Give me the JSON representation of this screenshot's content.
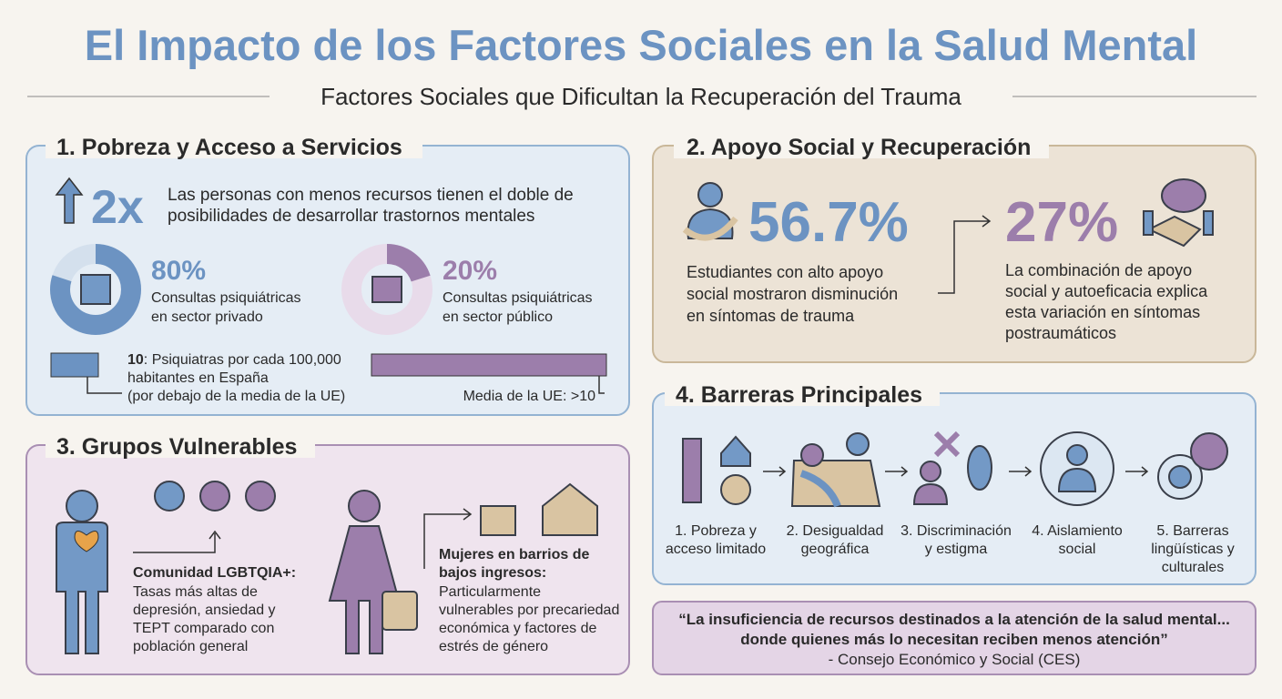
{
  "title": "El Impacto de los Factores Sociales en la Salud Mental",
  "subtitle": "Factores Sociales que Dificultan la Recuperación del Trauma",
  "poverty": {
    "heading": "1. Pobreza y Acceso a Servicios",
    "multiplier": "2x",
    "description": [
      "Las personas con menos recursos tienen el doble de",
      "posibilidades de desarrollar trastornos mentales"
    ],
    "private": {
      "value": 80,
      "label": "80%",
      "text": [
        "Consultas psiquiátricas",
        "en sector privado"
      ]
    },
    "public": {
      "value": 20,
      "label": "20%",
      "text": [
        "Consultas psiquiátricas",
        "en sector público"
      ]
    },
    "psychiatrists": {
      "number": "10",
      "text": [
        ": Psiquiatras por cada 100,000",
        "habitantes en España",
        "(por debajo de la media de la UE)"
      ]
    },
    "eu_average": "Media de la UE: >10"
  },
  "support": {
    "heading": "2. Apoyo Social y Recuperación",
    "stat1": "56.7%",
    "text1": [
      "Estudiantes con alto apoyo",
      "social mostraron disminución",
      "en síntomas de trauma"
    ],
    "stat2": "27%",
    "text2": [
      "La combinación de apoyo",
      "social y autoeficacia explica",
      "esta variación en síntomas",
      "postraumáticos"
    ]
  },
  "vulnerable": {
    "heading": "3. Grupos Vulnerables",
    "lgbt": {
      "title": "Comunidad LGBTQIA+:",
      "text": [
        "Tasas más altas de",
        "depresión, ansiedad y",
        "TEPT comparado con",
        "población general"
      ]
    },
    "women": {
      "title": [
        "Mujeres en barrios de",
        "bajos ingresos:"
      ],
      "text": [
        "Particularmente",
        "vulnerables por precariedad",
        "económica y factores de",
        "estrés de género"
      ]
    }
  },
  "barriers": {
    "heading": "4. Barreras Principales",
    "items": [
      [
        "1. Pobreza y",
        "acceso limitado"
      ],
      [
        "2. Desigualdad",
        "geográfica"
      ],
      [
        "3. Discriminación",
        "y estigma"
      ],
      [
        "4. Aislamiento",
        "social"
      ],
      [
        "5. Barreras",
        "lingüísticas y",
        "culturales"
      ]
    ]
  },
  "quote": {
    "text": [
      "“La insuficiencia de recursos destinados a la atención de la salud mental...",
      "donde quienes más lo necesitan reciben menos atención”"
    ],
    "source": "- Consejo Económico y Social (CES)"
  }
}
